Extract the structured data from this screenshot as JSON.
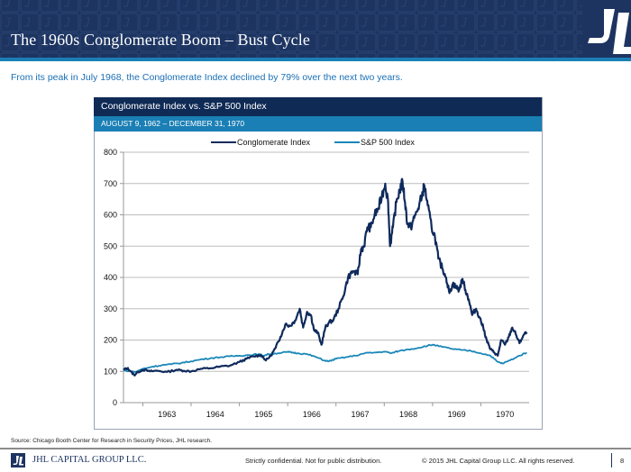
{
  "header": {
    "title": "The 1960s Conglomerate Boom – Bust Cycle"
  },
  "subtitle": "From its peak in July 1968, the Conglomerate Index declined by 79% over the next two years.",
  "panel": {
    "title": "Conglomerate Index vs. S&P 500 Index",
    "date_range": "AUGUST 9, 1962 – DECEMBER 31, 1970"
  },
  "colors": {
    "header_bg": "#1d3461",
    "accent": "#1a7fb5",
    "conglomerate": "#0f2a5c",
    "sp500": "#1a87b8"
  },
  "chart_data": {
    "type": "line",
    "title": "Conglomerate Index vs. S&P 500 Index",
    "subtitle": "AUGUST 9, 1962 – DECEMBER 31, 1970",
    "xlabel": "",
    "ylabel": "",
    "xlim": [
      1962.6,
      1971.0
    ],
    "ylim": [
      0,
      800
    ],
    "yticks": [
      0,
      100,
      200,
      300,
      400,
      500,
      600,
      700,
      800
    ],
    "xtick_labels": [
      "1963",
      "1964",
      "1965",
      "1966",
      "1967",
      "1968",
      "1969",
      "1970"
    ],
    "xtick_positions": [
      1963,
      1964,
      1965,
      1966,
      1967,
      1968,
      1969,
      1970
    ],
    "grid": true,
    "legend": "top-center",
    "series": [
      {
        "name": "Conglomerate Index",
        "x": [
          1962.6,
          1962.68,
          1962.75,
          1962.82,
          1962.9,
          1963.0,
          1963.15,
          1963.3,
          1963.5,
          1963.7,
          1963.85,
          1964.0,
          1964.2,
          1964.4,
          1964.6,
          1964.8,
          1965.0,
          1965.15,
          1965.3,
          1965.45,
          1965.55,
          1965.65,
          1965.75,
          1965.85,
          1965.95,
          1966.05,
          1966.15,
          1966.25,
          1966.32,
          1966.4,
          1966.48,
          1966.55,
          1966.62,
          1966.7,
          1966.78,
          1966.85,
          1966.95,
          1967.05,
          1967.15,
          1967.25,
          1967.35,
          1967.45,
          1967.52,
          1967.58,
          1967.65,
          1967.72,
          1967.8,
          1967.88,
          1967.95,
          1968.02,
          1968.08,
          1968.12,
          1968.18,
          1968.25,
          1968.32,
          1968.38,
          1968.43,
          1968.48,
          1968.55,
          1968.62,
          1968.7,
          1968.78,
          1968.83,
          1968.9,
          1968.98,
          1969.05,
          1969.12,
          1969.2,
          1969.28,
          1969.35,
          1969.42,
          1969.48,
          1969.55,
          1969.62,
          1969.68,
          1969.75,
          1969.82,
          1969.9,
          1969.98,
          1970.05,
          1970.12,
          1970.2,
          1970.28,
          1970.35,
          1970.42,
          1970.5,
          1970.58,
          1970.65,
          1970.72,
          1970.8,
          1970.88,
          1970.95
        ],
        "values": [
          105,
          110,
          100,
          88,
          98,
          105,
          100,
          102,
          98,
          105,
          102,
          100,
          108,
          110,
          115,
          118,
          130,
          140,
          148,
          152,
          135,
          150,
          175,
          210,
          250,
          245,
          262,
          300,
          240,
          290,
          280,
          230,
          225,
          185,
          240,
          255,
          265,
          300,
          340,
          400,
          420,
          410,
          490,
          500,
          560,
          560,
          600,
          620,
          660,
          700,
          640,
          500,
          560,
          640,
          680,
          705,
          640,
          570,
          560,
          590,
          620,
          660,
          695,
          630,
          560,
          530,
          460,
          430,
          400,
          350,
          380,
          370,
          360,
          395,
          360,
          330,
          280,
          300,
          270,
          240,
          200,
          170,
          160,
          150,
          200,
          185,
          210,
          240,
          220,
          190,
          215,
          225
        ]
      },
      {
        "name": "S&P 500 Index",
        "x": [
          1962.6,
          1962.75,
          1962.85,
          1963.0,
          1963.2,
          1963.4,
          1963.6,
          1963.8,
          1964.0,
          1964.2,
          1964.4,
          1964.6,
          1964.8,
          1965.0,
          1965.2,
          1965.4,
          1965.5,
          1965.6,
          1965.8,
          1966.0,
          1966.1,
          1966.2,
          1966.4,
          1966.6,
          1966.75,
          1966.85,
          1967.0,
          1967.2,
          1967.4,
          1967.6,
          1967.8,
          1968.0,
          1968.15,
          1968.3,
          1968.5,
          1968.7,
          1968.9,
          1969.0,
          1969.2,
          1969.4,
          1969.6,
          1969.8,
          1970.0,
          1970.2,
          1970.35,
          1970.45,
          1970.6,
          1970.8,
          1970.95
        ],
        "values": [
          103,
          100,
          98,
          108,
          115,
          120,
          123,
          127,
          132,
          138,
          142,
          145,
          148,
          150,
          152,
          155,
          150,
          155,
          158,
          162,
          160,
          158,
          155,
          145,
          135,
          132,
          140,
          145,
          150,
          158,
          160,
          163,
          158,
          165,
          170,
          175,
          182,
          185,
          178,
          172,
          168,
          165,
          158,
          150,
          130,
          125,
          135,
          150,
          160
        ]
      }
    ]
  },
  "source": "Source: Chicago Booth Center for Research in Security Prices, JHL research.",
  "footer": {
    "company": "JHL CAPITAL GROUP LLC.",
    "confidential": "Strictly confidential. Not for public distribution.",
    "copyright": "© 2015 JHL Capital Group LLC. All rights reserved.",
    "page_number": "8"
  }
}
